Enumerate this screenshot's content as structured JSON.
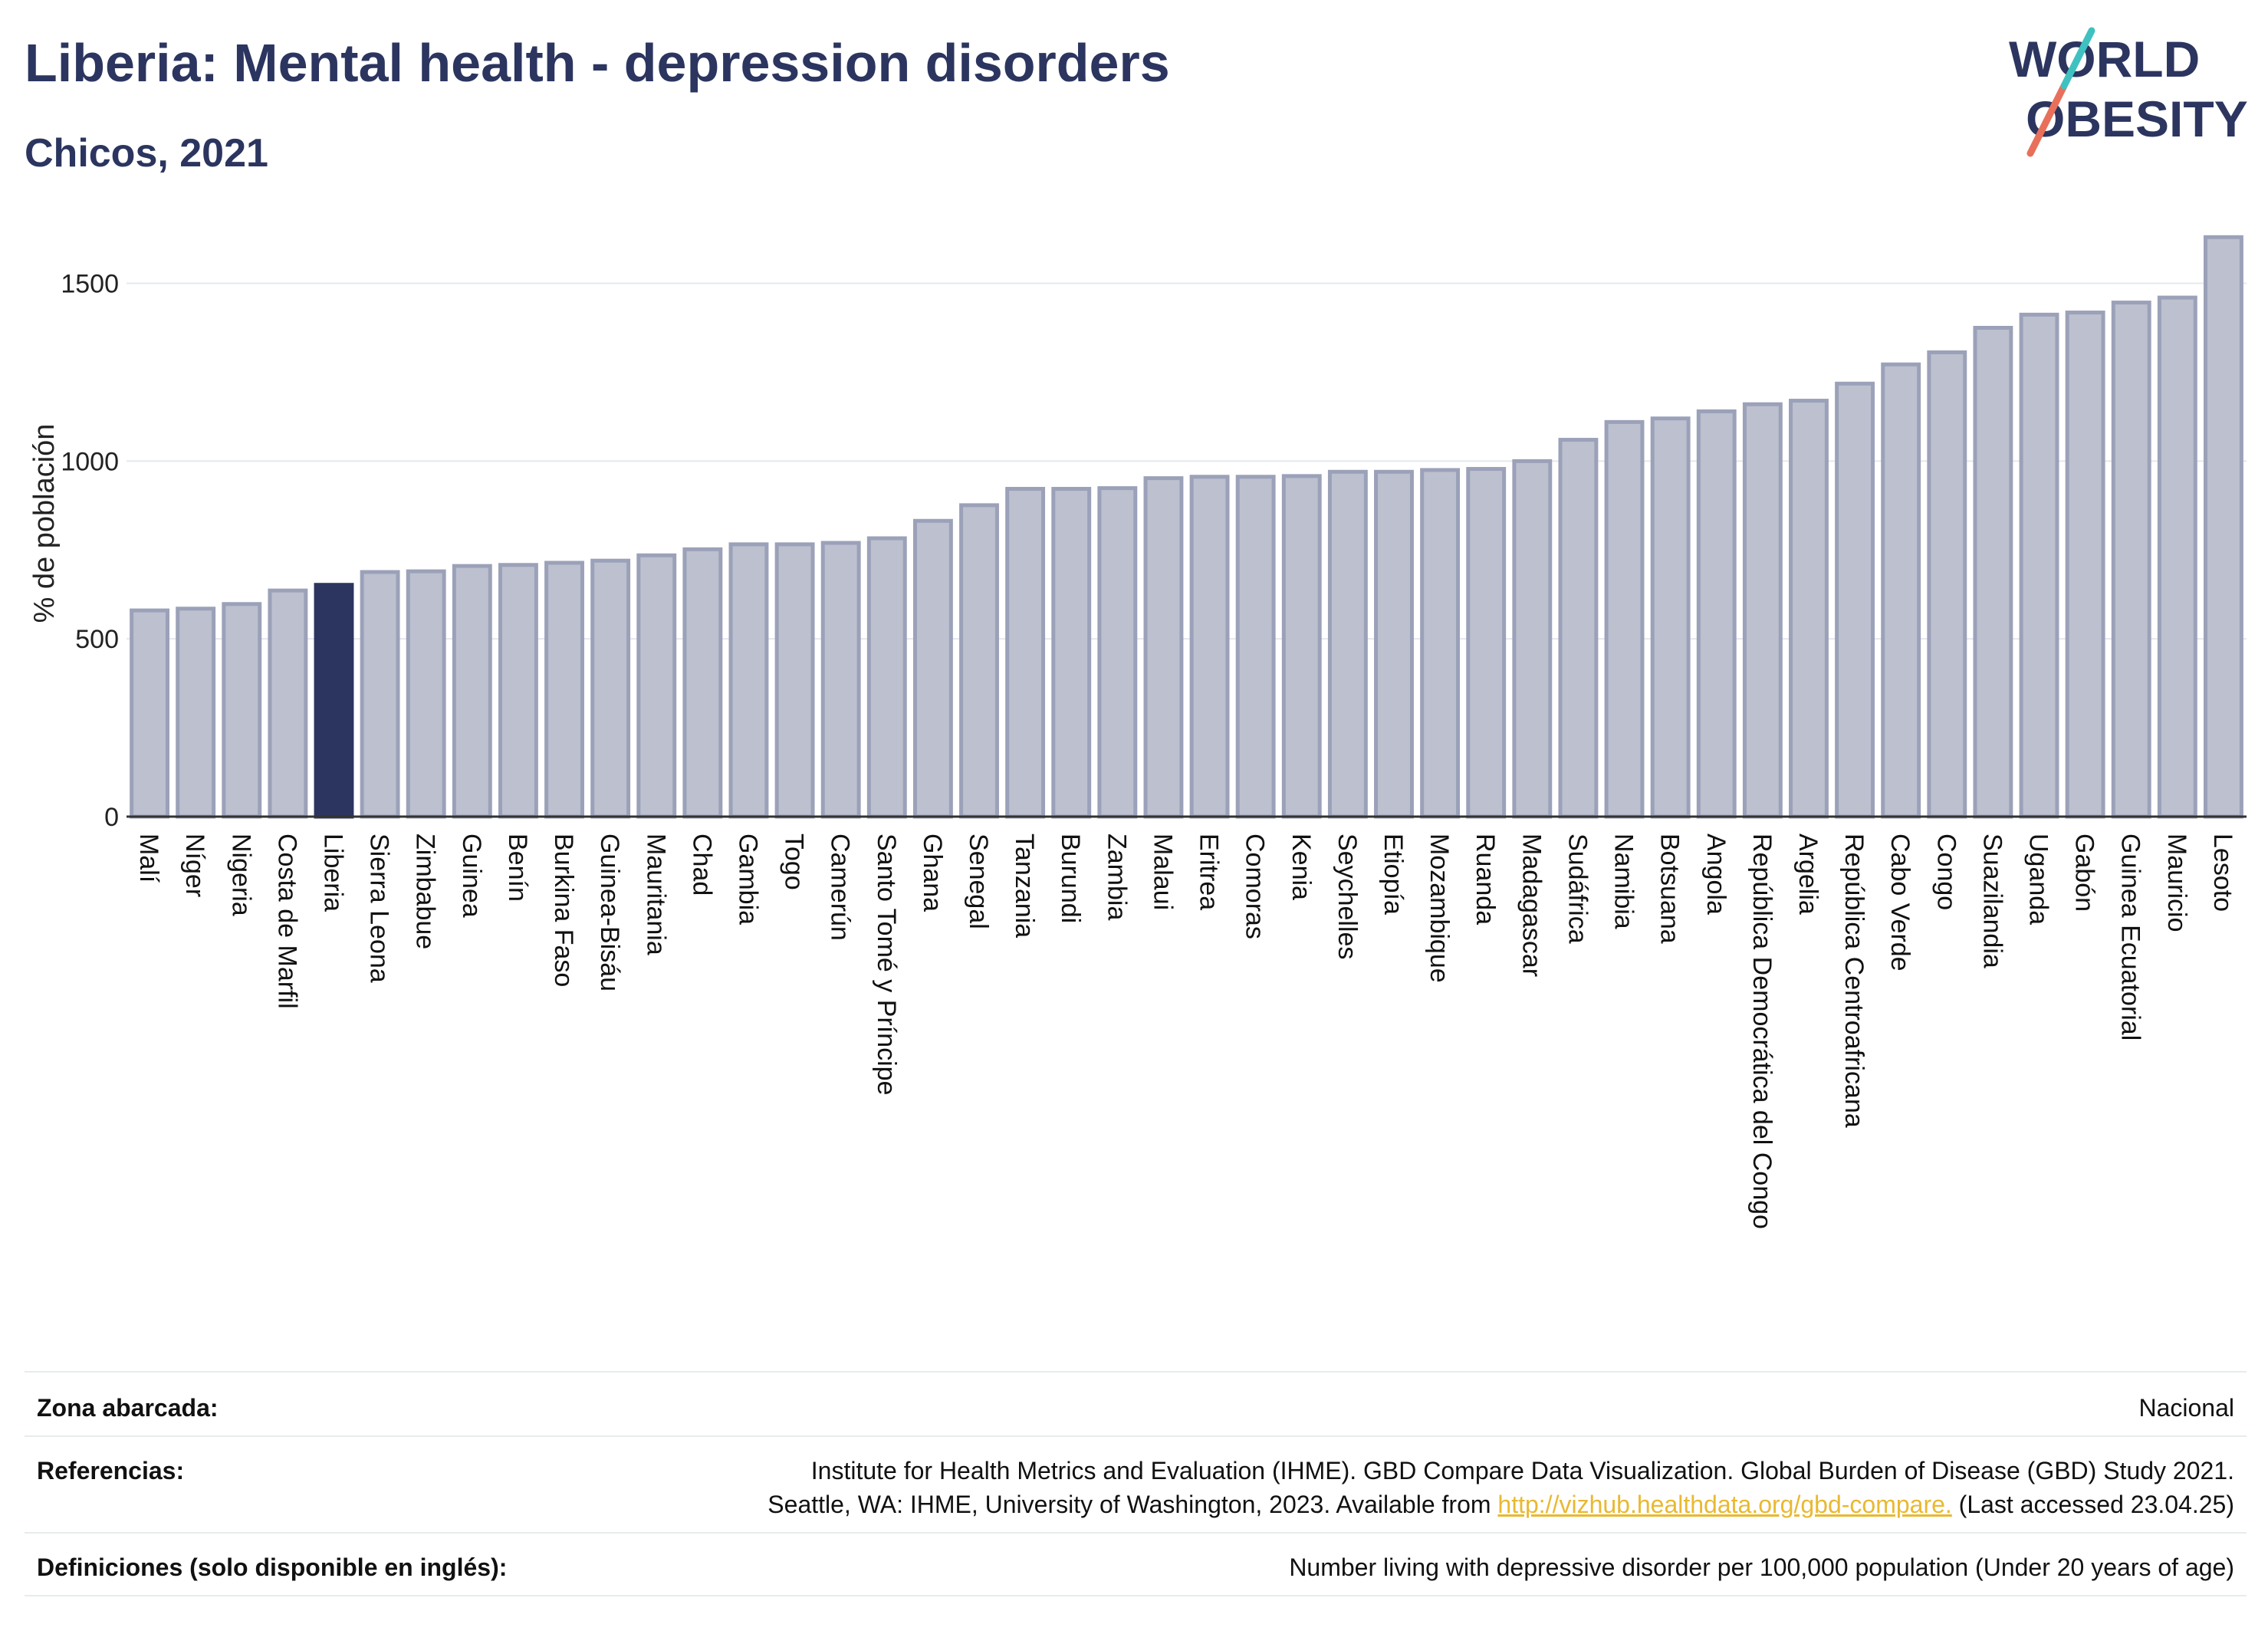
{
  "header": {
    "title": "Liberia: Mental health - depression disorders",
    "subtitle": "Chicos, 2021"
  },
  "logo": {
    "line1": "WORLD",
    "line2": "OBESITY"
  },
  "colors": {
    "bar": "#bcc0cf",
    "bar_stroke": "#9ba1b8",
    "highlight": "#2b355f",
    "title": "#2b355f",
    "grid": "#e5e8ee"
  },
  "chart_data": {
    "type": "bar",
    "ylabel": "% de población",
    "ylim": [
      0,
      1650
    ],
    "yticks": [
      0,
      500,
      1000,
      1500
    ],
    "highlight": "Liberia",
    "categories": [
      "Malí",
      "Níger",
      "Nigeria",
      "Costa de Marfil",
      "Liberia",
      "Sierra Leona",
      "Zimbabue",
      "Guinea",
      "Benín",
      "Burkina Faso",
      "Guinea-Bisáu",
      "Mauritania",
      "Chad",
      "Gambia",
      "Togo",
      "Camerún",
      "Santo Tomé y Príncipe",
      "Ghana",
      "Senegal",
      "Tanzania",
      "Burundi",
      "Zambia",
      "Malaui",
      "Eritrea",
      "Comoras",
      "Kenia",
      "Seychelles",
      "Etiopía",
      "Mozambique",
      "Ruanda",
      "Madagascar",
      "Sudáfrica",
      "Namibia",
      "Botsuana",
      "Angola",
      "República Democrática del Congo",
      "Argelia",
      "República Centroafricana",
      "Cabo Verde",
      "Congo",
      "Suazilandia",
      "Uganda",
      "Gabón",
      "Guinea Ecuatorial",
      "Mauricio",
      "Lesoto"
    ],
    "values": [
      580,
      585,
      598,
      636,
      652,
      688,
      690,
      705,
      708,
      714,
      720,
      735,
      752,
      766,
      766,
      770,
      783,
      832,
      876,
      922,
      922,
      924,
      952,
      956,
      956,
      958,
      970,
      970,
      975,
      978,
      1000,
      1060,
      1110,
      1120,
      1140,
      1160,
      1170,
      1218,
      1272,
      1306,
      1375,
      1412,
      1418,
      1446,
      1460,
      1630
    ]
  },
  "footer": {
    "coverage": {
      "label": "Zona abarcada:",
      "value": "Nacional"
    },
    "references": {
      "label": "Referencias:",
      "line1": "Institute for Health Metrics and Evaluation (IHME). GBD Compare Data Visualization. Global Burden of Disease (GBD) Study 2021.",
      "line2_pre": "Seattle, WA: IHME, University of Washington, 2023. Available from ",
      "link": "http://vizhub.healthdata.org/gbd-compare.",
      "line2_post": " (Last accessed 23.04.25)"
    },
    "definitions": {
      "label": "Definiciones (solo disponible en inglés):",
      "value": "Number living with depressive disorder per 100,000 population (Under 20 years of age)"
    }
  }
}
